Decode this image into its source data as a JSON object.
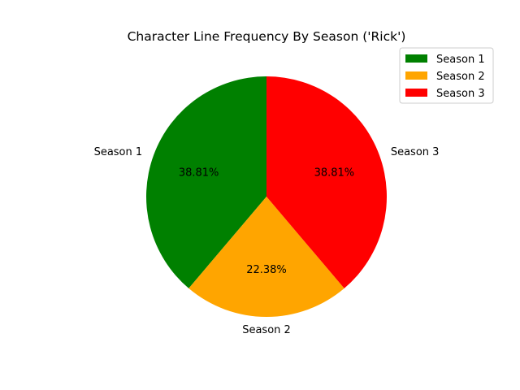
{
  "chart_data": {
    "type": "pie",
    "title": "Character Line Frequency By Season ('Rick')",
    "categories": [
      "Season 1",
      "Season 2",
      "Season 3"
    ],
    "values": [
      38.81,
      22.38,
      38.81
    ],
    "percent_labels": [
      "38.81%",
      "22.38%",
      "38.81%"
    ],
    "colors": [
      "#008000",
      "#ffa500",
      "#ff0000"
    ],
    "start_angle_deg": 90,
    "direction": "counterclockwise",
    "legend": {
      "placement": "top-right",
      "entries": [
        "Season 1",
        "Season 2",
        "Season 3"
      ]
    }
  }
}
